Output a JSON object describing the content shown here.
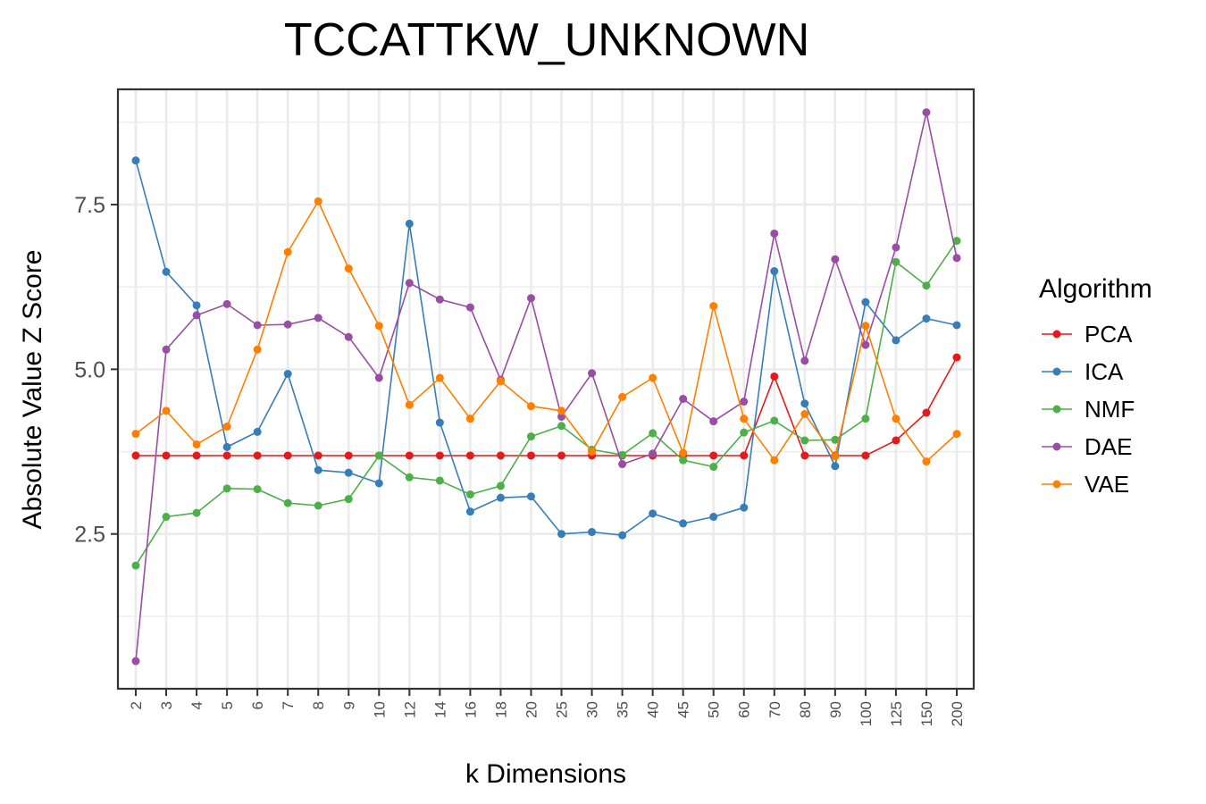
{
  "chart_data": {
    "type": "line",
    "title": "TCCATTKW_UNKNOWN",
    "xlabel": "k Dimensions",
    "ylabel": "Absolute Value Z Score",
    "categories": [
      "2",
      "3",
      "4",
      "5",
      "6",
      "7",
      "8",
      "9",
      "10",
      "12",
      "14",
      "16",
      "18",
      "20",
      "25",
      "30",
      "35",
      "40",
      "45",
      "50",
      "60",
      "70",
      "80",
      "90",
      "100",
      "125",
      "150",
      "200"
    ],
    "yticks": [
      2.5,
      5.0,
      7.5
    ],
    "ytick_labels": [
      "2.5",
      "5.0",
      "7.5"
    ],
    "ylim": [
      0.15,
      9.25
    ],
    "grid": true,
    "legend": {
      "title": "Algorithm",
      "position": "right"
    },
    "series": [
      {
        "name": "PCA",
        "color": "#e41a1c",
        "values": [
          3.69,
          3.69,
          3.69,
          3.69,
          3.69,
          3.69,
          3.69,
          3.69,
          3.69,
          3.69,
          3.69,
          3.69,
          3.69,
          3.69,
          3.69,
          3.69,
          3.69,
          3.69,
          3.69,
          3.69,
          3.69,
          4.89,
          3.69,
          3.69,
          3.69,
          3.92,
          4.34,
          5.18
        ]
      },
      {
        "name": "ICA",
        "color": "#377eb8",
        "values": [
          8.17,
          6.48,
          5.97,
          3.82,
          4.05,
          4.93,
          3.47,
          3.43,
          3.27,
          7.21,
          4.19,
          2.84,
          3.05,
          3.07,
          2.5,
          2.53,
          2.48,
          2.81,
          2.66,
          2.76,
          2.9,
          6.49,
          4.48,
          3.53,
          6.02,
          5.44,
          5.77,
          5.67
        ]
      },
      {
        "name": "NMF",
        "color": "#4daf4a",
        "values": [
          2.02,
          2.76,
          2.82,
          3.19,
          3.18,
          2.97,
          2.93,
          3.03,
          3.69,
          3.36,
          3.31,
          3.1,
          3.23,
          3.98,
          4.14,
          3.78,
          3.7,
          4.03,
          3.62,
          3.52,
          4.04,
          4.22,
          3.92,
          3.93,
          4.25,
          6.63,
          6.27,
          6.95
        ]
      },
      {
        "name": "DAE",
        "color": "#984ea3",
        "values": [
          0.57,
          5.3,
          5.82,
          5.99,
          5.67,
          5.68,
          5.78,
          5.49,
          4.87,
          6.31,
          6.06,
          5.94,
          4.84,
          6.08,
          4.28,
          4.94,
          3.56,
          3.72,
          4.55,
          4.21,
          4.51,
          7.06,
          5.13,
          6.67,
          5.37,
          6.85,
          8.9,
          6.69
        ]
      },
      {
        "name": "VAE",
        "color": "#ff7f00",
        "values": [
          4.02,
          4.37,
          3.86,
          4.13,
          5.3,
          6.78,
          7.55,
          6.53,
          5.66,
          4.46,
          4.87,
          4.25,
          4.82,
          4.44,
          4.37,
          3.75,
          4.58,
          4.87,
          3.73,
          5.96,
          4.25,
          3.62,
          4.32,
          3.68,
          5.66,
          4.25,
          3.6,
          4.02
        ]
      }
    ]
  }
}
